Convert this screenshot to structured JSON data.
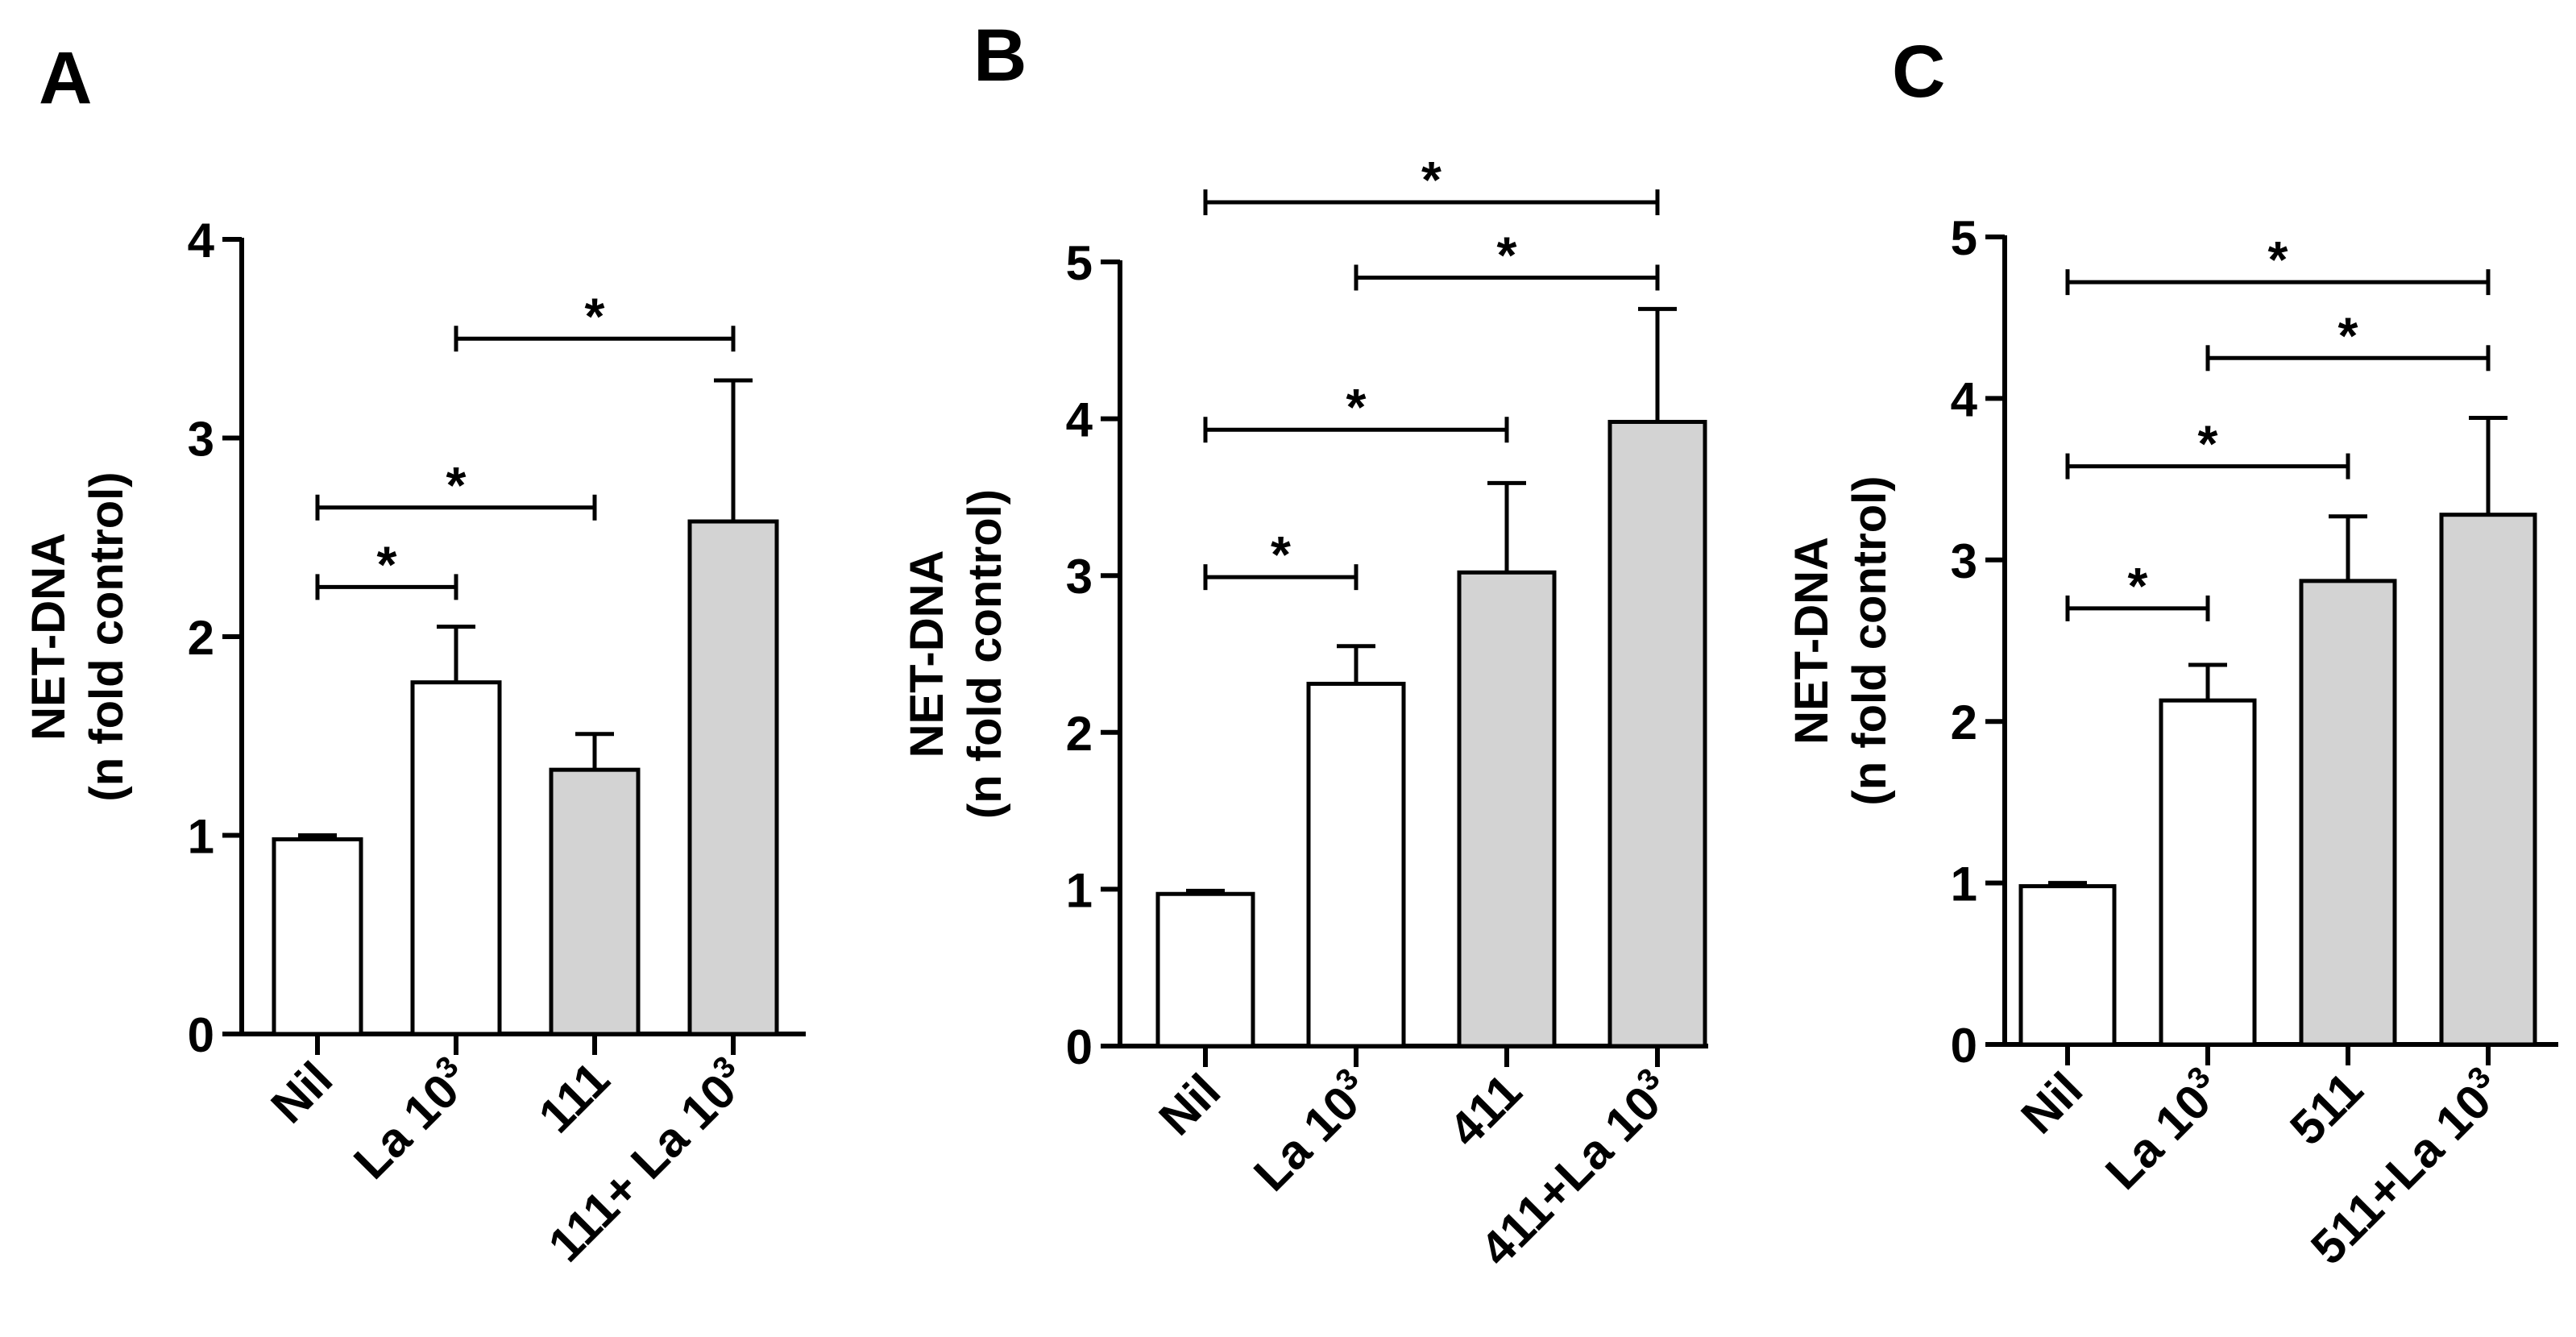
{
  "figure": {
    "background": "#ffffff",
    "bar_colors": {
      "white": "#ffffff",
      "grey": "#d3d3d3"
    }
  },
  "chart_data": [
    {
      "panel_label": "A",
      "type": "bar",
      "ylabel_line1": "NET-DNA",
      "ylabel_line2": "(n fold control)",
      "ylim": [
        0,
        4
      ],
      "yticks": [
        "0",
        "1",
        "2",
        "3",
        "4"
      ],
      "categories": [
        {
          "label": "Nil",
          "sup": ""
        },
        {
          "label": "La 10",
          "sup": "3"
        },
        {
          "label": "111",
          "sup": ""
        },
        {
          "label": "111+ La 10",
          "sup": "3"
        }
      ],
      "values": [
        0.98,
        1.77,
        1.33,
        2.58
      ],
      "errors": [
        0.02,
        0.28,
        0.18,
        0.71
      ],
      "fills": [
        "white",
        "white",
        "grey",
        "grey"
      ],
      "significance": [
        {
          "from": 0,
          "to": 1,
          "y": 2.25,
          "label": "*"
        },
        {
          "from": 0,
          "to": 2,
          "y": 2.65,
          "label": "*"
        },
        {
          "from": 1,
          "to": 3,
          "y": 3.5,
          "label": "*"
        }
      ]
    },
    {
      "panel_label": "B",
      "type": "bar",
      "ylabel_line1": "NET-DNA",
      "ylabel_line2": "(n fold control)",
      "ylim": [
        0,
        5
      ],
      "yticks": [
        "0",
        "1",
        "2",
        "3",
        "4",
        "5"
      ],
      "categories": [
        {
          "label": "Nil",
          "sup": ""
        },
        {
          "label": "La 10",
          "sup": "3"
        },
        {
          "label": "411",
          "sup": ""
        },
        {
          "label": "411+La 10",
          "sup": "3"
        }
      ],
      "values": [
        0.97,
        2.31,
        3.02,
        3.98
      ],
      "errors": [
        0.02,
        0.24,
        0.57,
        0.72
      ],
      "fills": [
        "white",
        "white",
        "grey",
        "grey"
      ],
      "significance": [
        {
          "from": 0,
          "to": 1,
          "y": 2.99,
          "label": "*"
        },
        {
          "from": 0,
          "to": 2,
          "y": 3.93,
          "label": "*"
        },
        {
          "from": 1,
          "to": 3,
          "y": 4.9,
          "label": "*"
        },
        {
          "from": 0,
          "to": 3,
          "y": 5.38,
          "label": "*"
        }
      ]
    },
    {
      "panel_label": "C",
      "type": "bar",
      "ylabel_line1": "NET-DNA",
      "ylabel_line2": "(n fold control)",
      "ylim": [
        0,
        5
      ],
      "yticks": [
        "0",
        "1",
        "2",
        "3",
        "4",
        "5"
      ],
      "categories": [
        {
          "label": "Nil",
          "sup": ""
        },
        {
          "label": "La 10",
          "sup": "3"
        },
        {
          "label": "511",
          "sup": ""
        },
        {
          "label": "511+La 10",
          "sup": "3"
        }
      ],
      "values": [
        0.98,
        2.13,
        2.87,
        3.28
      ],
      "errors": [
        0.02,
        0.22,
        0.4,
        0.6
      ],
      "fills": [
        "white",
        "white",
        "grey",
        "grey"
      ],
      "significance": [
        {
          "from": 0,
          "to": 1,
          "y": 2.7,
          "label": "*"
        },
        {
          "from": 0,
          "to": 2,
          "y": 3.58,
          "label": "*"
        },
        {
          "from": 1,
          "to": 3,
          "y": 4.25,
          "label": "*"
        },
        {
          "from": 0,
          "to": 3,
          "y": 4.72,
          "label": "*"
        }
      ]
    }
  ]
}
